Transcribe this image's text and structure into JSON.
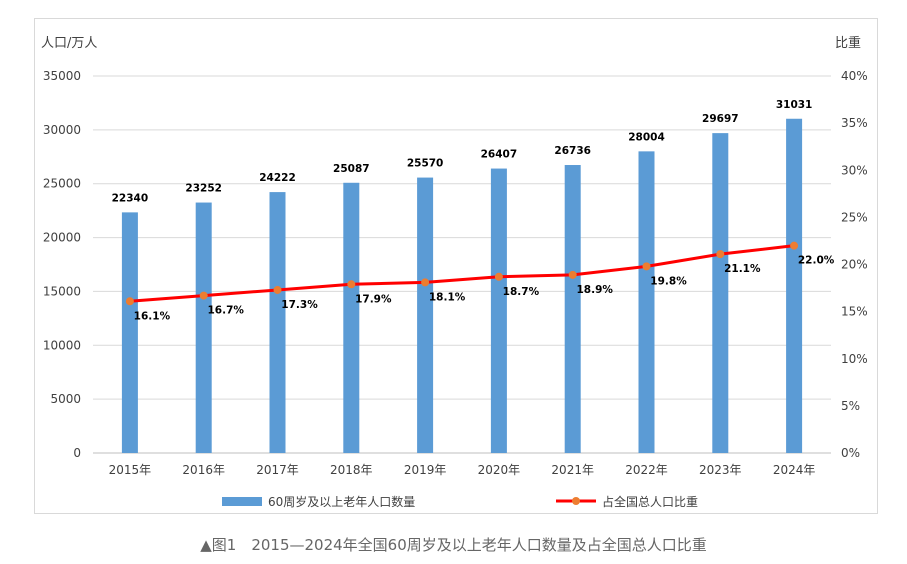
{
  "caption": "▲图1　2015—2024年全国60周岁及以上老年人口数量及占全国总人口比重",
  "chart_data": {
    "type": "bar",
    "categories": [
      "2015年",
      "2016年",
      "2017年",
      "2018年",
      "2019年",
      "2020年",
      "2021年",
      "2022年",
      "2023年",
      "2024年"
    ],
    "left_axis_label": "人口/万人",
    "right_axis_label": "比重",
    "left_axis": {
      "min": 0,
      "max": 35000,
      "step": 5000,
      "ticks": [
        "0",
        "5000",
        "10000",
        "15000",
        "20000",
        "25000",
        "30000",
        "35000"
      ]
    },
    "right_axis": {
      "min": 0,
      "max": 40,
      "step": 5,
      "ticks": [
        "0%",
        "5%",
        "10%",
        "15%",
        "20%",
        "25%",
        "30%",
        "35%",
        "40%"
      ]
    },
    "series": [
      {
        "name": "60周岁及以上老年人口数量",
        "kind": "bar",
        "axis": "left",
        "color": "#5b9bd5",
        "values": [
          22340,
          23252,
          24222,
          25087,
          25570,
          26407,
          26736,
          28004,
          29697,
          31031
        ],
        "labels": [
          "22340",
          "23252",
          "24222",
          "25087",
          "25570",
          "26407",
          "26736",
          "28004",
          "29697",
          "31031"
        ]
      },
      {
        "name": "占全国总人口比重",
        "kind": "line",
        "axis": "right",
        "color": "#ff0000",
        "marker_color": "#ed7d31",
        "values": [
          16.1,
          16.7,
          17.3,
          17.9,
          18.1,
          18.7,
          18.9,
          19.8,
          21.1,
          22.0
        ],
        "labels": [
          "16.1%",
          "16.7%",
          "17.3%",
          "17.9%",
          "18.1%",
          "18.7%",
          "18.9%",
          "19.8%",
          "21.1%",
          "22.0%"
        ]
      }
    ],
    "grid": true,
    "legend_position": "bottom"
  }
}
